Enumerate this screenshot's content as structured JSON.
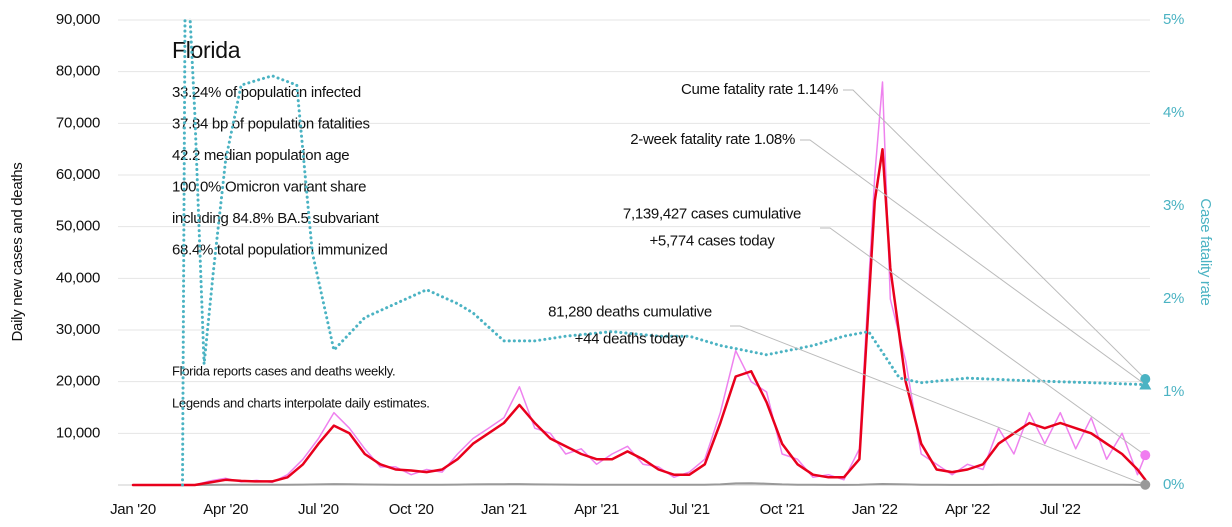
{
  "chart_data": {
    "type": "line",
    "title": "Florida",
    "info": [
      "33.24% of population infected",
      "37.84 bp of population fatalities",
      "42.2 median population age",
      "100.0% Omicron variant share",
      "including 84.8% BA.5 subvariant",
      "68.4% total population immunized"
    ],
    "notes": [
      "Florida reports cases and deaths weekly.",
      "Legends and charts interpolate daily estimates."
    ],
    "ylabel": "Daily new cases and deaths",
    "y2label": "Case fatality rate",
    "annotations": [
      {
        "lines": [
          "Cume fatality rate 1.14%"
        ],
        "value": 1.14,
        "axis": "y2",
        "marker": "circle",
        "color": "#4bb3c3"
      },
      {
        "lines": [
          "2-week fatality rate 1.08%"
        ],
        "value": 1.08,
        "axis": "y2",
        "marker": "triangle",
        "color": "#4bb3c3"
      },
      {
        "lines": [
          "7,139,427 cases cumulative",
          "+5,774 cases today"
        ],
        "value": 5774,
        "marker": "circle",
        "color": "#f07cf0"
      },
      {
        "lines": [
          "81,280 deaths cumulative",
          "+44 deaths today"
        ],
        "value": 44,
        "marker": "circle",
        "color": "#999999"
      }
    ],
    "x": [
      0,
      0.5,
      1,
      1.5,
      2,
      2.5,
      3,
      3.5,
      4,
      4.5,
      5,
      5.5,
      6,
      6.5,
      7,
      7.5,
      8,
      8.5,
      9,
      9.5,
      10,
      10.5,
      11,
      11.5,
      12,
      12.5,
      13,
      13.5,
      14,
      14.5,
      15,
      15.5,
      16,
      16.5,
      17,
      17.5,
      18,
      18.5,
      19,
      19.5,
      20,
      20.5,
      21,
      21.5,
      22,
      22.5,
      23,
      23.5,
      24,
      24.25,
      24.5,
      25,
      25.5,
      26,
      26.5,
      27,
      27.5,
      28,
      28.5,
      29,
      29.5,
      30,
      30.5,
      31,
      31.5,
      32,
      32.5,
      32.75
    ],
    "series": [
      {
        "color": "#ee82ee",
        "width": 1.5,
        "values": [
          0,
          0,
          0,
          0,
          0,
          800,
          1300,
          600,
          900,
          500,
          2000,
          5000,
          9000,
          14000,
          11000,
          7000,
          3500,
          3500,
          2000,
          3000,
          2500,
          6000,
          9000,
          11000,
          13000,
          19000,
          11000,
          10000,
          6000,
          7000,
          4000,
          6000,
          7500,
          4000,
          3500,
          1500,
          2500,
          5000,
          14000,
          26000,
          20000,
          18000,
          6000,
          5000,
          1500,
          2000,
          1000,
          7000,
          60000,
          78000,
          36000,
          24000,
          6000,
          4000,
          2000,
          4000,
          3000,
          11000,
          6000,
          14000,
          8000,
          14000,
          7000,
          13000,
          5000,
          10000,
          2000,
          5774
        ]
      },
      {
        "color": "#999999",
        "width": 2,
        "values": [
          0,
          0,
          0,
          0,
          0,
          20,
          50,
          40,
          40,
          30,
          40,
          80,
          120,
          180,
          150,
          100,
          80,
          60,
          50,
          40,
          50,
          80,
          120,
          150,
          160,
          170,
          120,
          100,
          80,
          60,
          50,
          50,
          60,
          50,
          40,
          30,
          30,
          40,
          120,
          300,
          350,
          250,
          120,
          60,
          30,
          20,
          20,
          30,
          150,
          200,
          180,
          120,
          60,
          30,
          20,
          20,
          20,
          30,
          40,
          50,
          50,
          50,
          50,
          40,
          40,
          30,
          20,
          44
        ]
      },
      {
        "color": "#e8001c",
        "width": 2.5,
        "values": [
          0,
          0,
          0,
          0,
          0,
          500,
          1000,
          800,
          700,
          700,
          1500,
          4000,
          8000,
          11500,
          10000,
          6000,
          4000,
          3000,
          2800,
          2500,
          3000,
          5000,
          8000,
          10000,
          12000,
          15500,
          12000,
          9000,
          7500,
          6000,
          5000,
          5000,
          6500,
          5000,
          3000,
          2000,
          2000,
          4000,
          12000,
          21000,
          22000,
          16000,
          8000,
          4000,
          2000,
          1500,
          1500,
          5000,
          55000,
          65000,
          42000,
          20000,
          8000,
          3000,
          2500,
          3000,
          4000,
          8000,
          10000,
          12000,
          11000,
          12000,
          11000,
          10000,
          8000,
          6000,
          3000,
          1000
        ]
      },
      {
        "color": "#4bb3c3",
        "width": 3,
        "dotted": true,
        "axis": "y2",
        "x": [
          1.6,
          1.7,
          2.0,
          2.3,
          2.6,
          3.0,
          3.5,
          4.5,
          5.3,
          5.8,
          6.5,
          7.5,
          8.5,
          9.5,
          10.5,
          11,
          12,
          13,
          14,
          15.5,
          17,
          18,
          19,
          20.5,
          22,
          23,
          23.8,
          24.3,
          24.8,
          25.5,
          27,
          29,
          31,
          32.75
        ],
        "values": [
          0,
          6,
          4,
          1.3,
          2.3,
          3.5,
          4.3,
          4.4,
          4.3,
          2.5,
          1.45,
          1.8,
          1.95,
          2.1,
          1.95,
          1.85,
          1.55,
          1.55,
          1.6,
          1.65,
          1.6,
          1.6,
          1.5,
          1.4,
          1.5,
          1.6,
          1.65,
          1.4,
          1.15,
          1.1,
          1.15,
          1.12,
          1.1,
          1.08
        ]
      }
    ],
    "xlim": [
      0,
      33
    ],
    "xticks": [
      {
        "value": 0,
        "label": "Jan '20"
      },
      {
        "value": 3,
        "label": "Apr '20"
      },
      {
        "value": 6,
        "label": "Jul '20"
      },
      {
        "value": 9,
        "label": "Oct '20"
      },
      {
        "value": 12,
        "label": "Jan '21"
      },
      {
        "value": 15,
        "label": "Apr '21"
      },
      {
        "value": 18,
        "label": "Jul '21"
      },
      {
        "value": 21,
        "label": "Oct '21"
      },
      {
        "value": 24,
        "label": "Jan '22"
      },
      {
        "value": 27,
        "label": "Apr '22"
      },
      {
        "value": 30,
        "label": "Jul '22"
      }
    ],
    "ylim": [
      0,
      90000
    ],
    "yticks": [
      {
        "value": 10000,
        "label": "10,000"
      },
      {
        "value": 20000,
        "label": "20,000"
      },
      {
        "value": 30000,
        "label": "30,000"
      },
      {
        "value": 40000,
        "label": "40,000"
      },
      {
        "value": 50000,
        "label": "50,000"
      },
      {
        "value": 60000,
        "label": "60,000"
      },
      {
        "value": 70000,
        "label": "70,000"
      },
      {
        "value": 80000,
        "label": "80,000"
      },
      {
        "value": 90000,
        "label": "90,000"
      }
    ],
    "y2lim": [
      0,
      5
    ],
    "y2ticks": [
      {
        "value": 0,
        "label": "0%"
      },
      {
        "value": 1,
        "label": "1%"
      },
      {
        "value": 2,
        "label": "2%"
      },
      {
        "value": 3,
        "label": "3%"
      },
      {
        "value": 4,
        "label": "4%"
      },
      {
        "value": 5,
        "label": "5%"
      }
    ],
    "grid": true,
    "y2color": "#4bb3c3"
  }
}
